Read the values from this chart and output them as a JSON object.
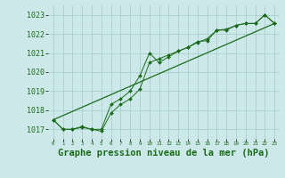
{
  "bg_color": "#cce8e8",
  "grid_color": "#aacfcf",
  "line_color": "#1a6b1a",
  "xlim": [
    -0.5,
    23.5
  ],
  "ylim": [
    1016.5,
    1023.5
  ],
  "yticks": [
    1017,
    1018,
    1019,
    1020,
    1021,
    1022,
    1023
  ],
  "xticks": [
    0,
    1,
    2,
    3,
    4,
    5,
    6,
    7,
    8,
    9,
    10,
    11,
    12,
    13,
    14,
    15,
    16,
    17,
    18,
    19,
    20,
    21,
    22,
    23
  ],
  "series1_x": [
    0,
    1,
    2,
    3,
    4,
    5,
    6,
    7,
    8,
    9,
    10,
    11,
    12,
    13,
    14,
    15,
    16,
    17,
    18,
    19,
    20,
    21,
    22,
    23
  ],
  "series1_y": [
    1017.5,
    1017.0,
    1017.0,
    1017.1,
    1017.0,
    1017.0,
    1018.3,
    1018.6,
    1019.0,
    1019.8,
    1021.0,
    1020.5,
    1020.8,
    1021.1,
    1021.3,
    1021.6,
    1021.65,
    1022.2,
    1022.2,
    1022.45,
    1022.55,
    1022.55,
    1023.0,
    1022.55
  ],
  "series2_x": [
    0,
    1,
    2,
    3,
    4,
    5,
    6,
    7,
    8,
    9,
    10,
    11,
    12,
    13,
    14,
    15,
    16,
    17,
    18,
    19,
    20,
    21,
    22,
    23
  ],
  "series2_y": [
    1017.5,
    1017.0,
    1017.0,
    1017.15,
    1017.0,
    1016.9,
    1017.85,
    1018.3,
    1018.6,
    1019.1,
    1020.5,
    1020.7,
    1020.9,
    1021.1,
    1021.3,
    1021.55,
    1021.75,
    1022.2,
    1022.25,
    1022.45,
    1022.55,
    1022.55,
    1023.0,
    1022.55
  ],
  "series3_x": [
    0,
    23
  ],
  "series3_y": [
    1017.5,
    1022.55
  ],
  "xlabel": "Graphe pression niveau de la mer (hPa)",
  "xlabel_color": "#1a6b1a",
  "xlabel_fontsize": 7.5,
  "ytick_fontsize": 6,
  "xtick_fontsize": 4.2
}
